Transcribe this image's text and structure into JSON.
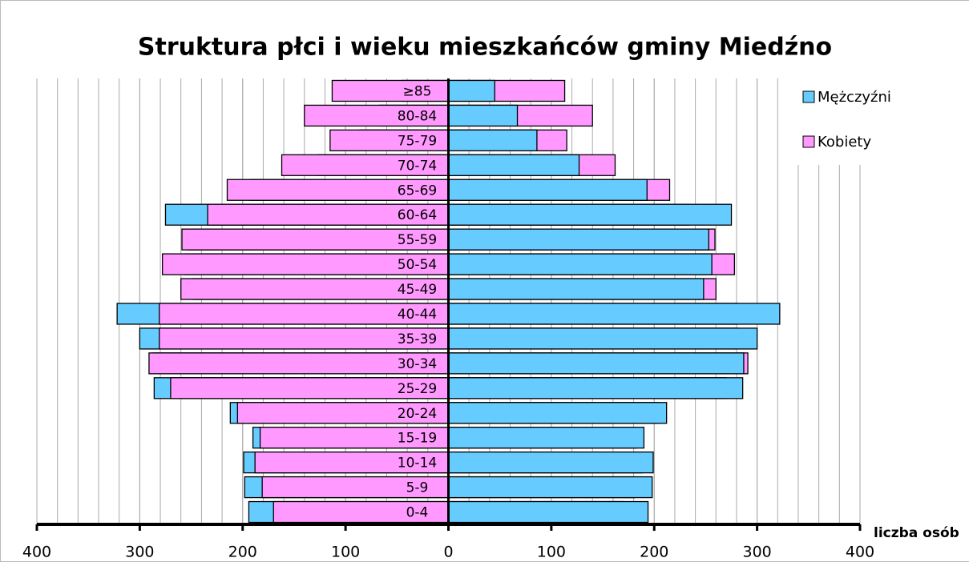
{
  "chart_data": {
    "type": "pyramid",
    "title": "Struktura płci i wieku mieszkańców gminy Miedźno",
    "x_label": "liczba osób",
    "categories": [
      "0-4",
      "5-9",
      "10-14",
      "15-19",
      "20-24",
      "25-29",
      "30-34",
      "35-39",
      "40-44",
      "45-49",
      "50-54",
      "55-59",
      "60-64",
      "65-69",
      "70-74",
      "75-79",
      "80-84",
      "≥85"
    ],
    "series": [
      {
        "name": "Mężczyźni",
        "color": "#66ccff",
        "values": [
          194,
          198,
          199,
          190,
          212,
          286,
          287,
          300,
          322,
          248,
          256,
          253,
          275,
          193,
          127,
          86,
          67,
          45
        ]
      },
      {
        "name": "Kobiety",
        "color": "#ff99ff",
        "values": [
          170,
          181,
          188,
          183,
          205,
          270,
          291,
          281,
          281,
          260,
          278,
          259,
          234,
          215,
          162,
          115,
          140,
          113
        ]
      }
    ],
    "xlim": [
      -400,
      400
    ],
    "xticks": [
      {
        "value": -400,
        "label": "400"
      },
      {
        "value": -300,
        "label": "300"
      },
      {
        "value": -200,
        "label": "200"
      },
      {
        "value": -100,
        "label": "100"
      },
      0,
      100,
      200,
      300,
      400
    ],
    "xgrid": [
      -380,
      -360,
      -340,
      -320,
      -300,
      -280,
      -260,
      -240,
      -220,
      -200,
      -180,
      -160,
      -140,
      -120,
      -100,
      -80,
      -60,
      -40,
      -20,
      20,
      40,
      60,
      80,
      100,
      120,
      140,
      160,
      180,
      200,
      220,
      240,
      260,
      280,
      300,
      320,
      340,
      360,
      380
    ],
    "legend": "top-right"
  }
}
